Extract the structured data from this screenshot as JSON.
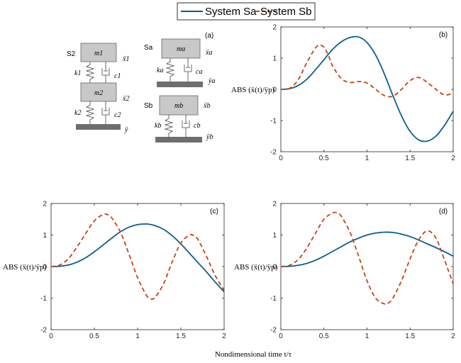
{
  "legend": {
    "entries": [
      {
        "label": "System Sa",
        "color": "#0b5d8c",
        "dash": "solid"
      },
      {
        "label": "System Sb",
        "color": "#c1441a",
        "dash": "dashed"
      }
    ]
  },
  "x_axis_label": "Nondimensional time t/τ",
  "diagram": {
    "panel_label": "(a)",
    "systems": [
      {
        "name": "S2",
        "masses": [
          "m1",
          "m2"
        ],
        "springs": [
          "k1",
          "k2"
        ],
        "dampers": [
          "c1",
          "c2"
        ],
        "responses": [
          "ẍ1",
          "ẍ2",
          "ÿ"
        ]
      },
      {
        "name": "Sa",
        "masses": [
          "ma"
        ],
        "springs": [
          "ka"
        ],
        "dampers": [
          "ca"
        ],
        "responses": [
          "ẍa",
          "ÿa"
        ]
      },
      {
        "name": "Sb",
        "masses": [
          "mb"
        ],
        "springs": [
          "kb"
        ],
        "dampers": [
          "cb"
        ],
        "responses": [
          "ẍb",
          "ÿb"
        ]
      }
    ]
  },
  "chart_data": [
    {
      "type": "line",
      "panel_label": "(b)",
      "ylabel": "ABS (ẍ(t)/ÿp)",
      "xlim": [
        0,
        2
      ],
      "ylim": [
        -2,
        2
      ],
      "xticks": [
        "0",
        "0.5",
        "1",
        "1.5",
        "2"
      ],
      "yticks": [
        "-2",
        "-1",
        "0",
        "1",
        "2"
      ],
      "grid": false,
      "series": [
        {
          "name": "System Sa",
          "x": [
            0,
            0.1,
            0.2,
            0.3,
            0.4,
            0.5,
            0.6,
            0.7,
            0.8,
            0.9,
            1.0,
            1.1,
            1.2,
            1.3,
            1.4,
            1.5,
            1.6,
            1.7,
            1.8,
            1.9,
            2.0
          ],
          "y": [
            0,
            0.02,
            0.12,
            0.32,
            0.62,
            0.95,
            1.28,
            1.52,
            1.66,
            1.68,
            1.5,
            1.1,
            0.5,
            -0.2,
            -0.85,
            -1.35,
            -1.62,
            -1.66,
            -1.5,
            -1.15,
            -0.7
          ]
        },
        {
          "name": "System Sb",
          "x": [
            0,
            0.1,
            0.2,
            0.3,
            0.4,
            0.45,
            0.5,
            0.55,
            0.6,
            0.7,
            0.8,
            0.9,
            1.0,
            1.1,
            1.2,
            1.3,
            1.4,
            1.5,
            1.6,
            1.7,
            1.8,
            1.9,
            2.0
          ],
          "y": [
            0,
            0.03,
            0.3,
            0.85,
            1.32,
            1.42,
            1.35,
            1.1,
            0.75,
            0.35,
            0.22,
            0.25,
            0.2,
            0.0,
            -0.2,
            -0.22,
            0.0,
            0.28,
            0.38,
            0.22,
            0.0,
            -0.18,
            -0.12
          ]
        }
      ]
    },
    {
      "type": "line",
      "panel_label": "(c)",
      "ylabel": "ABS (ẍ(t)/ÿp)",
      "xlim": [
        0,
        2
      ],
      "ylim": [
        -2,
        2
      ],
      "xticks": [
        "0",
        "0.5",
        "1",
        "1.5",
        "2"
      ],
      "yticks": [
        "-2",
        "-1",
        "0",
        "1",
        "2"
      ],
      "grid": false,
      "series": [
        {
          "name": "System Sa",
          "x": [
            0,
            0.1,
            0.2,
            0.3,
            0.4,
            0.5,
            0.6,
            0.7,
            0.8,
            0.9,
            1.0,
            1.1,
            1.2,
            1.3,
            1.4,
            1.5,
            1.6,
            1.7,
            1.8,
            1.9,
            2.0
          ],
          "y": [
            0,
            0.01,
            0.05,
            0.14,
            0.28,
            0.47,
            0.68,
            0.9,
            1.1,
            1.25,
            1.33,
            1.35,
            1.3,
            1.18,
            0.98,
            0.72,
            0.42,
            0.12,
            -0.18,
            -0.5,
            -0.8
          ]
        },
        {
          "name": "System Sb",
          "x": [
            0,
            0.1,
            0.2,
            0.3,
            0.4,
            0.5,
            0.6,
            0.65,
            0.7,
            0.8,
            0.9,
            1.0,
            1.1,
            1.15,
            1.2,
            1.3,
            1.4,
            1.5,
            1.6,
            1.65,
            1.7,
            1.8,
            1.9,
            2.0
          ],
          "y": [
            0,
            0.05,
            0.25,
            0.62,
            1.05,
            1.45,
            1.65,
            1.65,
            1.55,
            1.1,
            0.4,
            -0.35,
            -0.9,
            -1.02,
            -0.98,
            -0.55,
            0.15,
            0.75,
            1.0,
            0.98,
            0.85,
            0.3,
            -0.3,
            -0.75
          ]
        }
      ]
    },
    {
      "type": "line",
      "panel_label": "(d)",
      "ylabel": "ABS (ẍ(t)/ÿp)",
      "xlim": [
        0,
        2
      ],
      "ylim": [
        -2,
        2
      ],
      "xticks": [
        "0",
        "0.5",
        "1",
        "1.5",
        "2"
      ],
      "yticks": [
        "-2",
        "-1",
        "0",
        "1",
        "2"
      ],
      "grid": false,
      "series": [
        {
          "name": "System Sa",
          "x": [
            0,
            0.1,
            0.2,
            0.3,
            0.4,
            0.5,
            0.6,
            0.7,
            0.8,
            0.9,
            1.0,
            1.1,
            1.2,
            1.3,
            1.4,
            1.5,
            1.6,
            1.7,
            1.8,
            1.9,
            2.0
          ],
          "y": [
            0,
            0.01,
            0.04,
            0.1,
            0.2,
            0.33,
            0.48,
            0.63,
            0.78,
            0.9,
            1.0,
            1.06,
            1.09,
            1.08,
            1.03,
            0.95,
            0.84,
            0.72,
            0.6,
            0.47,
            0.33
          ]
        },
        {
          "name": "System Sb",
          "x": [
            0,
            0.1,
            0.2,
            0.3,
            0.4,
            0.5,
            0.6,
            0.65,
            0.7,
            0.8,
            0.9,
            1.0,
            1.1,
            1.2,
            1.25,
            1.3,
            1.4,
            1.5,
            1.6,
            1.7,
            1.8,
            1.9,
            2.0
          ],
          "y": [
            0,
            0.04,
            0.22,
            0.58,
            1.05,
            1.5,
            1.7,
            1.7,
            1.6,
            1.1,
            0.35,
            -0.45,
            -1.0,
            -1.18,
            -1.15,
            -1.0,
            -0.45,
            0.25,
            0.85,
            1.13,
            0.9,
            0.2,
            -0.55
          ]
        }
      ]
    }
  ]
}
